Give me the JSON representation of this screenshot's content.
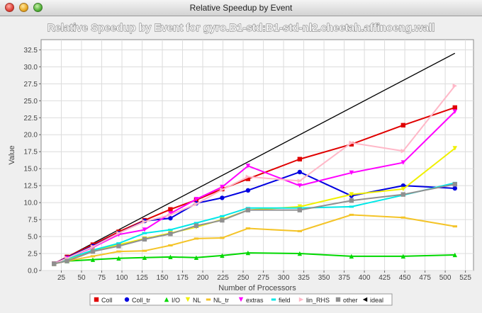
{
  "window": {
    "title": "Relative Speedup by Event"
  },
  "chart_data": {
    "type": "line",
    "title": "Relative Speedup by Event for gyro.B1-std:B1-std-nl2.cheetah.affinoeng.wall",
    "xlabel": "Number of Processors",
    "ylabel": "Value",
    "xlim": [
      0,
      535
    ],
    "ylim": [
      0,
      34
    ],
    "x_ticks": [
      25,
      50,
      75,
      100,
      125,
      150,
      175,
      200,
      225,
      250,
      275,
      300,
      325,
      350,
      375,
      400,
      425,
      450,
      475,
      500,
      525
    ],
    "y_ticks": [
      0.0,
      2.5,
      5.0,
      7.5,
      10.0,
      12.5,
      15.0,
      17.5,
      20.0,
      22.5,
      25.0,
      27.5,
      30.0,
      32.5
    ],
    "y_tick_labels": [
      "0.0",
      "2.5",
      "5.0",
      "7.5",
      "10.0",
      "12.5",
      "15.0",
      "17.5",
      "20.0",
      "22.5",
      "25.0",
      "27.5",
      "30.0",
      "32.5"
    ],
    "grid": true,
    "legend_position": "bottom",
    "x": [
      16,
      32,
      64,
      96,
      128,
      160,
      192,
      224,
      256,
      320,
      384,
      448,
      512
    ],
    "series": [
      {
        "name": "Coll",
        "color": "#e00000",
        "marker": "square",
        "values": [
          1.0,
          2.0,
          3.8,
          5.7,
          7.4,
          9.0,
          10.4,
          12.0,
          13.5,
          16.4,
          18.6,
          21.4,
          24.0
        ]
      },
      {
        "name": "Coll_tr",
        "color": "#0000e0",
        "marker": "circle",
        "values": [
          1.0,
          1.9,
          3.6,
          5.5,
          7.3,
          7.7,
          9.9,
          10.7,
          11.8,
          14.5,
          11.0,
          12.5,
          12.1
        ]
      },
      {
        "name": "I/O",
        "color": "#00d800",
        "marker": "triangle-up",
        "values": [
          1.0,
          1.4,
          1.6,
          1.8,
          1.9,
          2.0,
          1.9,
          2.2,
          2.6,
          2.5,
          2.1,
          2.1,
          2.3
        ]
      },
      {
        "name": "NL",
        "color": "#f0f000",
        "marker": "triangle-down",
        "values": [
          1.0,
          1.5,
          3.0,
          3.8,
          4.7,
          5.5,
          6.4,
          7.5,
          8.9,
          9.4,
          11.2,
          12.0,
          18.0
        ]
      },
      {
        "name": "NL_tr",
        "color": "#f4c428",
        "marker": "dash",
        "values": [
          1.0,
          1.4,
          2.1,
          2.8,
          2.9,
          3.7,
          4.7,
          4.8,
          6.2,
          5.8,
          8.2,
          7.8,
          6.5
        ]
      },
      {
        "name": "extras",
        "color": "#ff00ff",
        "marker": "triangle-down",
        "values": [
          1.0,
          1.8,
          3.4,
          5.3,
          6.0,
          8.4,
          10.5,
          12.3,
          15.4,
          12.5,
          14.4,
          15.9,
          23.4
        ]
      },
      {
        "name": "field",
        "color": "#00e8e8",
        "marker": "dash",
        "values": [
          1.0,
          1.7,
          3.0,
          4.0,
          5.5,
          6.0,
          7.0,
          8.0,
          9.2,
          9.2,
          9.4,
          11.1,
          12.9
        ]
      },
      {
        "name": "lin_RHS",
        "color": "#ffb8c8",
        "marker": "triangle-right",
        "values": [
          1.0,
          1.8,
          3.5,
          5.5,
          7.2,
          8.2,
          9.8,
          11.9,
          13.8,
          13.2,
          18.8,
          17.6,
          27.2
        ]
      },
      {
        "name": "other",
        "color": "#909090",
        "marker": "square",
        "values": [
          1.0,
          1.4,
          2.8,
          3.6,
          4.6,
          5.4,
          6.6,
          7.4,
          8.9,
          8.9,
          10.3,
          11.2,
          12.7
        ]
      },
      {
        "name": "ideal",
        "color": "#000000",
        "marker": "triangle-left",
        "values": [
          1,
          2,
          4,
          6,
          8,
          10,
          12,
          14,
          16,
          20,
          24,
          28,
          32
        ]
      }
    ]
  }
}
